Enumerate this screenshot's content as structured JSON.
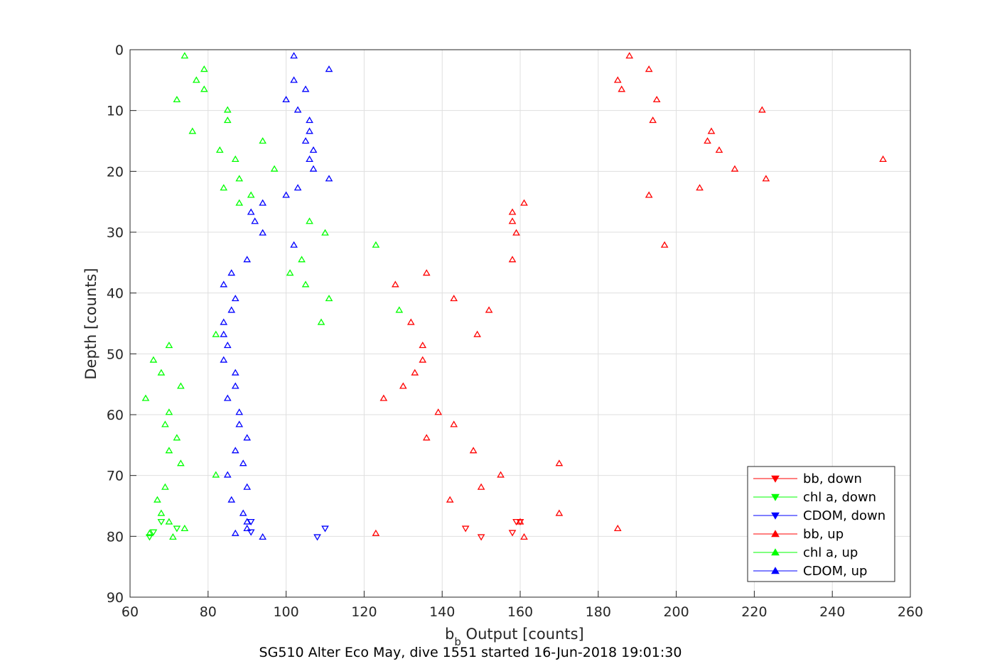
{
  "chart_data": {
    "type": "scatter",
    "title": "",
    "xlabel_main": "b",
    "xlabel_sub": "b",
    "xlabel_rest": " Output [counts]",
    "ylabel": "Depth [counts]",
    "subtitle": "SG510 Alter Eco May, dive 1551 started 16-Jun-2018 19:01:30",
    "xlim": [
      60,
      260
    ],
    "ylim": [
      0,
      90
    ],
    "y_reversed": true,
    "xticks": [
      60,
      80,
      100,
      120,
      140,
      160,
      180,
      200,
      220,
      240,
      260
    ],
    "yticks": [
      0,
      10,
      20,
      30,
      40,
      50,
      60,
      70,
      80,
      90
    ],
    "grid": true,
    "legend_position": "bottom-right",
    "series": [
      {
        "name": "bb, down",
        "color": "#ff0000",
        "marker": "triangle-down",
        "points": [
          [
            150,
            80.1
          ],
          [
            158,
            79.4
          ],
          [
            159,
            77.6
          ],
          [
            160,
            77.6
          ],
          [
            146,
            78.7
          ]
        ]
      },
      {
        "name": "chl a, down",
        "color": "#00ff00",
        "marker": "triangle-down",
        "points": [
          [
            66,
            79.3
          ],
          [
            65,
            80.1
          ],
          [
            68,
            77.6
          ],
          [
            72,
            78.7
          ]
        ]
      },
      {
        "name": "CDOM, down",
        "color": "#0000ff",
        "marker": "triangle-down",
        "points": [
          [
            108,
            80.1
          ],
          [
            110,
            78.7
          ],
          [
            91,
            77.6
          ],
          [
            91,
            79.3
          ]
        ]
      },
      {
        "name": "bb, up",
        "color": "#ff0000",
        "marker": "triangle-up",
        "points": [
          [
            188,
            1
          ],
          [
            193,
            3.2
          ],
          [
            185,
            5
          ],
          [
            186,
            6.5
          ],
          [
            195,
            8.2
          ],
          [
            222,
            9.9
          ],
          [
            194,
            11.6
          ],
          [
            209,
            13.4
          ],
          [
            208,
            15
          ],
          [
            211,
            16.5
          ],
          [
            253,
            18
          ],
          [
            215,
            19.6
          ],
          [
            223,
            21.2
          ],
          [
            206,
            22.7
          ],
          [
            193,
            23.9
          ],
          [
            161,
            25.2
          ],
          [
            158,
            26.7
          ],
          [
            158,
            28.2
          ],
          [
            159,
            30.1
          ],
          [
            197,
            32.1
          ],
          [
            158,
            34.5
          ],
          [
            136,
            36.7
          ],
          [
            128,
            38.6
          ],
          [
            143,
            40.9
          ],
          [
            152,
            42.8
          ],
          [
            132,
            44.8
          ],
          [
            149,
            46.8
          ],
          [
            135,
            48.6
          ],
          [
            135,
            51
          ],
          [
            133,
            53.1
          ],
          [
            130,
            55.3
          ],
          [
            125,
            57.3
          ],
          [
            139,
            59.6
          ],
          [
            143,
            61.6
          ],
          [
            136,
            63.8
          ],
          [
            148,
            65.9
          ],
          [
            170,
            68
          ],
          [
            155,
            69.9
          ],
          [
            150,
            71.9
          ],
          [
            142,
            74
          ],
          [
            170,
            76.2
          ],
          [
            160,
            77.6
          ],
          [
            185,
            78.7
          ],
          [
            123,
            79.5
          ],
          [
            161,
            80.1
          ]
        ]
      },
      {
        "name": "chl a, up",
        "color": "#00ff00",
        "marker": "triangle-up",
        "points": [
          [
            74,
            1
          ],
          [
            79,
            3.2
          ],
          [
            77,
            5
          ],
          [
            79,
            6.5
          ],
          [
            72,
            8.2
          ],
          [
            85,
            9.9
          ],
          [
            85,
            11.6
          ],
          [
            76,
            13.4
          ],
          [
            94,
            15
          ],
          [
            83,
            16.5
          ],
          [
            87,
            18
          ],
          [
            97,
            19.6
          ],
          [
            88,
            21.2
          ],
          [
            84,
            22.7
          ],
          [
            91,
            23.9
          ],
          [
            88,
            25.2
          ],
          [
            106,
            28.2
          ],
          [
            110,
            30.1
          ],
          [
            123,
            32.1
          ],
          [
            104,
            34.5
          ],
          [
            101,
            36.7
          ],
          [
            105,
            38.6
          ],
          [
            111,
            40.9
          ],
          [
            129,
            42.8
          ],
          [
            109,
            44.8
          ],
          [
            82,
            46.8
          ],
          [
            70,
            48.6
          ],
          [
            66,
            51
          ],
          [
            68,
            53.1
          ],
          [
            73,
            55.3
          ],
          [
            64,
            57.3
          ],
          [
            70,
            59.6
          ],
          [
            69,
            61.6
          ],
          [
            72,
            63.8
          ],
          [
            70,
            65.9
          ],
          [
            73,
            68
          ],
          [
            82,
            69.9
          ],
          [
            69,
            71.9
          ],
          [
            67,
            74
          ],
          [
            68,
            76.2
          ],
          [
            70,
            77.6
          ],
          [
            74,
            78.7
          ],
          [
            65,
            79.5
          ],
          [
            71,
            80.1
          ]
        ]
      },
      {
        "name": "CDOM, up",
        "color": "#0000ff",
        "marker": "triangle-up",
        "points": [
          [
            102,
            1
          ],
          [
            111,
            3.2
          ],
          [
            102,
            5
          ],
          [
            105,
            6.5
          ],
          [
            100,
            8.2
          ],
          [
            103,
            9.9
          ],
          [
            106,
            11.6
          ],
          [
            106,
            13.4
          ],
          [
            105,
            15
          ],
          [
            107,
            16.5
          ],
          [
            106,
            18
          ],
          [
            107,
            19.6
          ],
          [
            111,
            21.2
          ],
          [
            103,
            22.7
          ],
          [
            100,
            23.9
          ],
          [
            94,
            25.2
          ],
          [
            91,
            26.7
          ],
          [
            92,
            28.2
          ],
          [
            94,
            30.1
          ],
          [
            102,
            32.1
          ],
          [
            90,
            34.5
          ],
          [
            86,
            36.7
          ],
          [
            84,
            38.6
          ],
          [
            87,
            40.9
          ],
          [
            86,
            42.8
          ],
          [
            84,
            44.8
          ],
          [
            84,
            46.8
          ],
          [
            85,
            48.6
          ],
          [
            84,
            51
          ],
          [
            87,
            53.1
          ],
          [
            87,
            55.3
          ],
          [
            85,
            57.3
          ],
          [
            88,
            59.6
          ],
          [
            88,
            61.6
          ],
          [
            90,
            63.8
          ],
          [
            87,
            65.9
          ],
          [
            89,
            68
          ],
          [
            85,
            69.9
          ],
          [
            90,
            71.9
          ],
          [
            86,
            74
          ],
          [
            89,
            76.2
          ],
          [
            90,
            77.6
          ],
          [
            90,
            78.7
          ],
          [
            87,
            79.5
          ],
          [
            94,
            80.1
          ]
        ]
      }
    ]
  }
}
